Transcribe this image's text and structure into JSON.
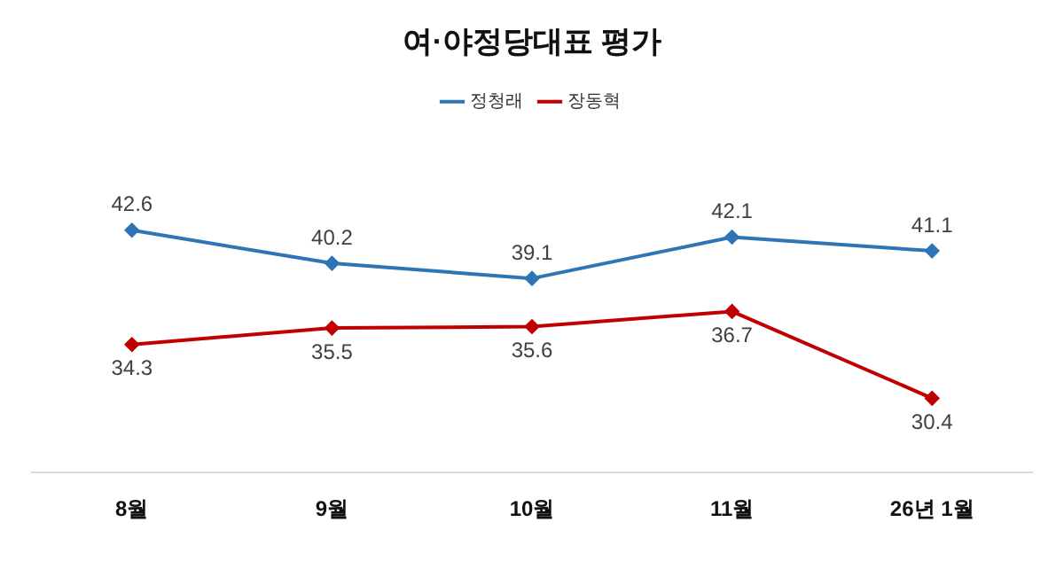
{
  "chart_data": {
    "type": "line",
    "title": "여·야정당대표 평가",
    "categories": [
      "8월",
      "9월",
      "10월",
      "11월",
      "26년 1월"
    ],
    "series": [
      {
        "name": "정청래",
        "color": "#2e75b6",
        "values": [
          42.6,
          40.2,
          39.1,
          42.1,
          41.1
        ]
      },
      {
        "name": "장동혁",
        "color": "#c00000",
        "values": [
          34.3,
          35.5,
          35.6,
          36.7,
          30.4
        ]
      }
    ],
    "data_labels": true,
    "legend": "top",
    "marker": "diamond",
    "grid": false,
    "tick_labels": "x"
  }
}
